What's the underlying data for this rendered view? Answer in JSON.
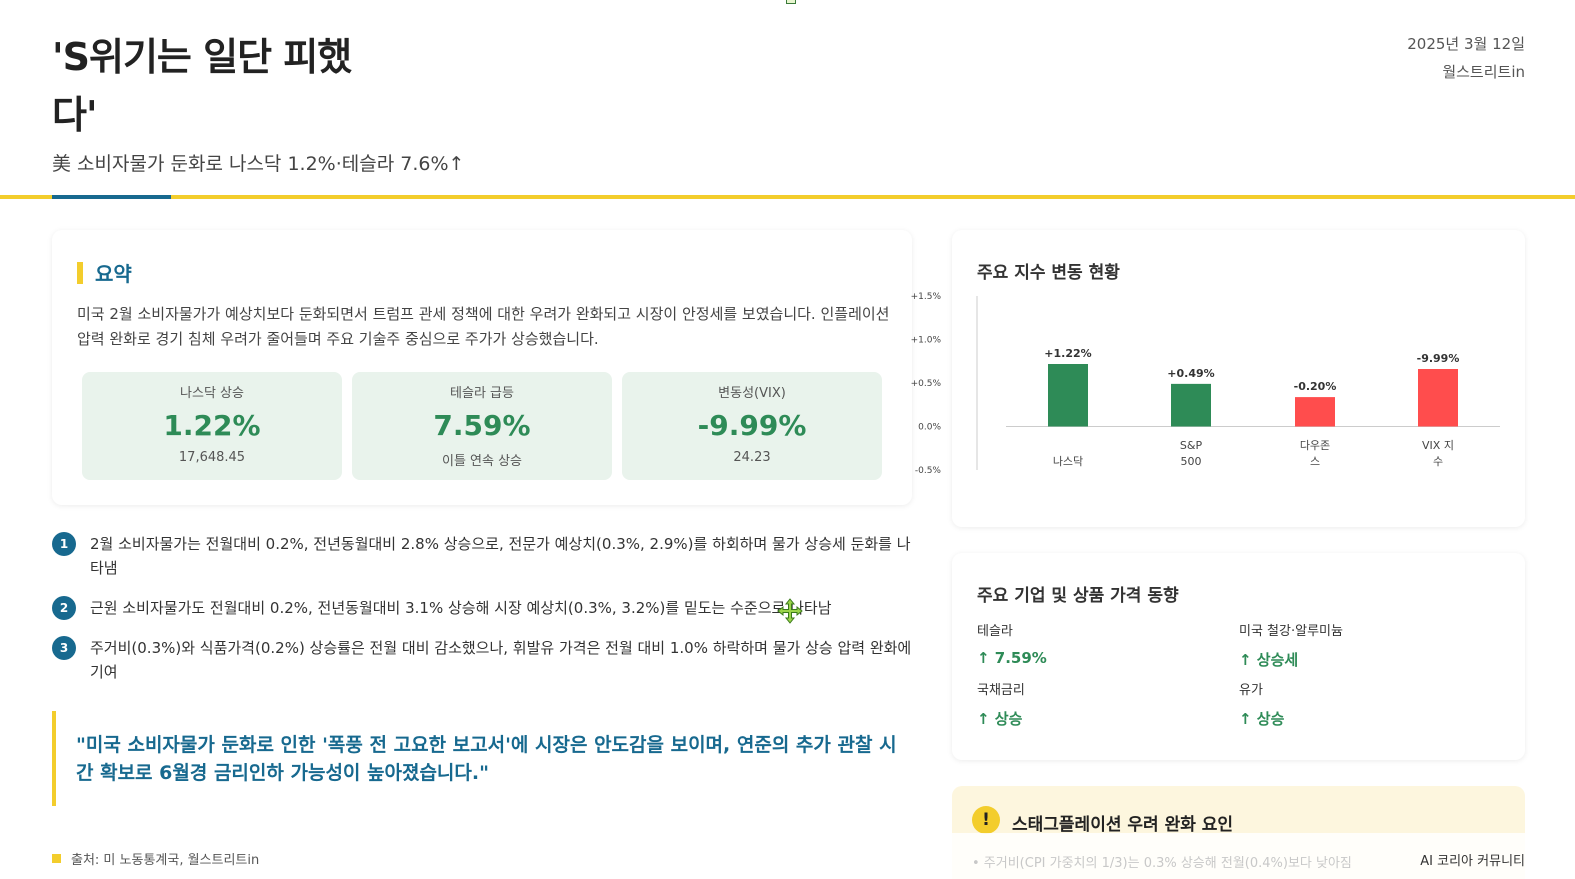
{
  "header": {
    "title": "'S위기는 일단 피했다'",
    "subtitle": "美 소비자물가 둔화로 나스닥 1.2%·테슬라 7.6%↑",
    "date": "2025년 3월 12일",
    "publisher": "월스트리트in"
  },
  "summary": {
    "title": "요약",
    "text": "미국 2월 소비자물가가 예상치보다 둔화되면서 트럼프 관세 정책에 대한 우려가 완화되고 시장이 안정세를 보였습니다. 인플레이션 압력 완화로 경기 침체 우려가 줄어들며 주요 기술주 중심으로 주가가 상승했습니다.",
    "stats": [
      {
        "label": "나스닥 상승",
        "value": "1.22%",
        "sub": "17,648.45"
      },
      {
        "label": "테슬라 급등",
        "value": "7.59%",
        "sub": "이틀 연속 상승"
      },
      {
        "label": "변동성(VIX)",
        "value": "-9.99%",
        "sub": "24.23"
      }
    ]
  },
  "points": [
    {
      "num": "1",
      "text": "2월 소비자물가는 전월대비 0.2%, 전년동월대비 2.8% 상승으로, 전문가 예상치(0.3%, 2.9%)를 하회하며 물가 상승세 둔화를 나타냄"
    },
    {
      "num": "2",
      "text": "근원 소비자물가도 전월대비 0.2%, 전년동월대비 3.1% 상승해 시장 예상치(0.3%, 3.2%)를 밑도는 수준으로 나타남"
    },
    {
      "num": "3",
      "text": "주거비(0.3%)와 식품가격(0.2%) 상승률은 전월 대비 감소했으나, 휘발유 가격은 전월 대비 1.0% 하락하며 물가 상승 압력 완화에 기여"
    }
  ],
  "quote": "\"미국 소비자물가 둔화로 인한 '폭풍 전 고요한 보고서'에 시장은 안도감을 보이며, 연준의 추가 관찰 시간 확보로 6월경 금리인하 가능성이 높아졌습니다.\"",
  "source": "출처: 미 노동통계국, 월스트리트in",
  "chart_card": {
    "title": "주요 지수 변동 현황"
  },
  "chart_data": {
    "type": "bar",
    "title": "주요 지수 변동 현황",
    "categories": [
      "나스닥",
      "S&P 500",
      "다우존스",
      "VIX 지수"
    ],
    "values": [
      1.22,
      0.49,
      -0.2,
      -9.99
    ],
    "data_labels": [
      "+1.22%",
      "+0.49%",
      "-0.20%",
      "-9.99%"
    ],
    "y_ticks": [
      "+1.5%",
      "+1.0%",
      "+0.5%",
      "0.0%",
      "-0.5%"
    ],
    "ylim": [
      -0.5,
      1.5
    ],
    "colors": {
      "positive": "#2e8b57",
      "negative": "#ff4d4d"
    }
  },
  "prices": {
    "title": "주요 기업 및 상품 가격 동향",
    "items": [
      {
        "label": "테슬라",
        "value": "↑ 7.59%"
      },
      {
        "label": "미국 철강·알루미늄",
        "value": "↑ 상승세"
      },
      {
        "label": "국채금리",
        "value": "↑ 상승"
      },
      {
        "label": "유가",
        "value": "↑ 상승"
      }
    ]
  },
  "warning": {
    "icon": "!",
    "title": "스태그플레이션 우려 완화 요인",
    "line": "• 주거비(CPI 가중치의 1/3)는 0.3% 상승해 전월(0.4%)보다 낮아짐"
  },
  "footer": {
    "brand": "AI 코리아 커뮤니티"
  },
  "colors": {
    "accent_blue": "#17698f",
    "accent_yellow": "#f3cd2c",
    "green": "#2e8b57",
    "red": "#ff4d4d"
  }
}
